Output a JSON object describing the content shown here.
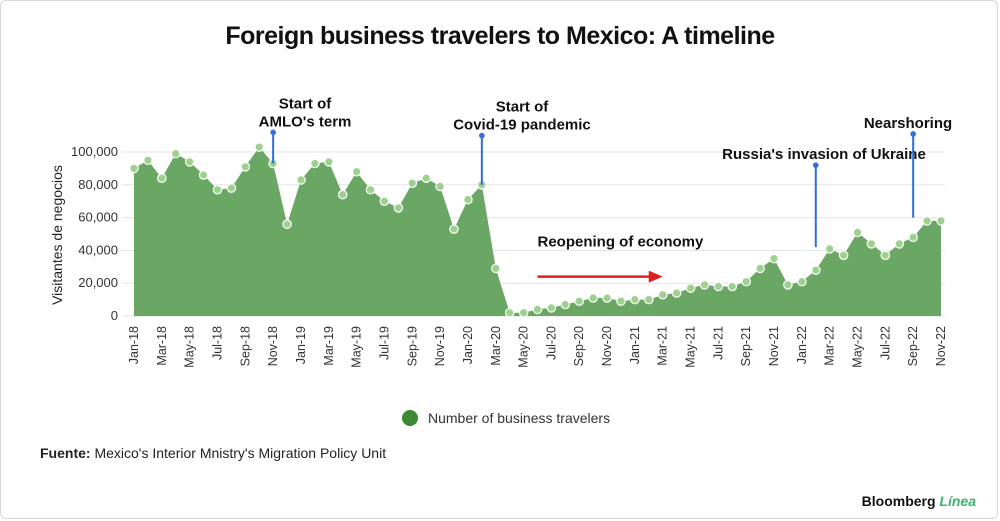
{
  "title": "Foreign business travelers to Mexico: A timeline",
  "source_label": "Fuente:",
  "source_text": "Mexico's Interior Mnistry's Migration Policy Unit",
  "brand_name": "Bloomberg",
  "brand_accent": "Línea",
  "colors": {
    "area": "#6aa764",
    "point": "#9ed18f",
    "pin": "#2f6de1",
    "arrow": "#e02020",
    "grid": "#e3e3e3",
    "legend_dot": "#3b8a32"
  },
  "chart_data": {
    "type": "area",
    "title": "Foreign business travelers to Mexico: A timeline",
    "ylabel": "Visitantes de negocios",
    "xlabel": "",
    "ylim": [
      0,
      100000
    ],
    "yticks": [
      0,
      20000,
      40000,
      60000,
      80000,
      100000
    ],
    "ytick_labels": [
      "0",
      "20,000",
      "40,000",
      "60,000",
      "80,000",
      "100,000"
    ],
    "grid": true,
    "legend_position": "bottom-center",
    "x": [
      "Jan-18",
      "Feb-18",
      "Mar-18",
      "Apr-18",
      "May-18",
      "Jun-18",
      "Jul-18",
      "Aug-18",
      "Sep-18",
      "Oct-18",
      "Nov-18",
      "Dec-18",
      "Jan-19",
      "Feb-19",
      "Mar-19",
      "Apr-19",
      "May-19",
      "Jun-19",
      "Jul-19",
      "Aug-19",
      "Sep-19",
      "Oct-19",
      "Nov-19",
      "Dec-19",
      "Jan-20",
      "Feb-20",
      "Mar-20",
      "Apr-20",
      "May-20",
      "Jun-20",
      "Jul-20",
      "Aug-20",
      "Sep-20",
      "Oct-20",
      "Nov-20",
      "Dec-20",
      "Jan-21",
      "Feb-21",
      "Mar-21",
      "Apr-21",
      "May-21",
      "Jun-21",
      "Jul-21",
      "Aug-21",
      "Sep-21",
      "Oct-21",
      "Nov-21",
      "Dec-21",
      "Jan-22",
      "Feb-22",
      "Mar-22",
      "Apr-22",
      "May-22",
      "Jun-22",
      "Jul-22",
      "Aug-22",
      "Sep-22",
      "Oct-22",
      "Nov-22"
    ],
    "xtick_labels": [
      "Jan-18",
      "Mar-18",
      "May-18",
      "Jul-18",
      "Sep-18",
      "Nov-18",
      "Jan-19",
      "Mar-19",
      "May-19",
      "Jul-19",
      "Sep-19",
      "Nov-19",
      "Jan-20",
      "Mar-20",
      "May-20",
      "Jul-20",
      "Sep-20",
      "Nov-20",
      "Jan-21",
      "Mar-21",
      "May-21",
      "Jul-21",
      "Sep-21",
      "Nov-21",
      "Jan-22",
      "Mar-22",
      "May-22",
      "Jul-22",
      "Sep-22",
      "Nov-22"
    ],
    "series": [
      {
        "name": "Number of business travelers",
        "values": [
          90000,
          95000,
          84000,
          99000,
          94000,
          86000,
          77000,
          78000,
          91000,
          103000,
          93000,
          56000,
          83000,
          93000,
          94000,
          74000,
          88000,
          77000,
          70000,
          66000,
          81000,
          84000,
          79000,
          53000,
          71000,
          80000,
          29000,
          2000,
          2000,
          4000,
          5000,
          7000,
          9000,
          11000,
          11000,
          9000,
          10000,
          10000,
          13000,
          14000,
          17000,
          19000,
          18000,
          18000,
          21000,
          29000,
          35000,
          19000,
          21000,
          28000,
          41000,
          37000,
          51000,
          44000,
          37000,
          44000,
          48000,
          58000,
          58000
        ]
      }
    ],
    "annotations": [
      {
        "text": "Start of AMLO's term",
        "lines": [
          "Start of",
          "AMLO's term"
        ],
        "x": "Nov-18",
        "pin_top": 112000,
        "pin_bottom": 93000
      },
      {
        "text": "Start of Covid-19 pandemic",
        "lines": [
          "Start of",
          "Covid-19 pandemic"
        ],
        "x": "Feb-20",
        "pin_top": 110000,
        "pin_bottom": 80000
      },
      {
        "text": "Russia's invasion of Ukraine",
        "lines": [
          "Russia's invasion of Ukraine"
        ],
        "x": "Feb-22",
        "pin_top": 92000,
        "pin_bottom": 42000
      },
      {
        "text": "Nearshoring",
        "lines": [
          "Nearshoring"
        ],
        "x": "Sep-22",
        "pin_top": 111000,
        "pin_bottom": 60000
      },
      {
        "text": "Reopening of economy",
        "lines": [
          "Reopening of economy"
        ],
        "arrow_from": "Jun-20",
        "arrow_to": "Mar-21",
        "arrow_y": 24000
      }
    ]
  }
}
